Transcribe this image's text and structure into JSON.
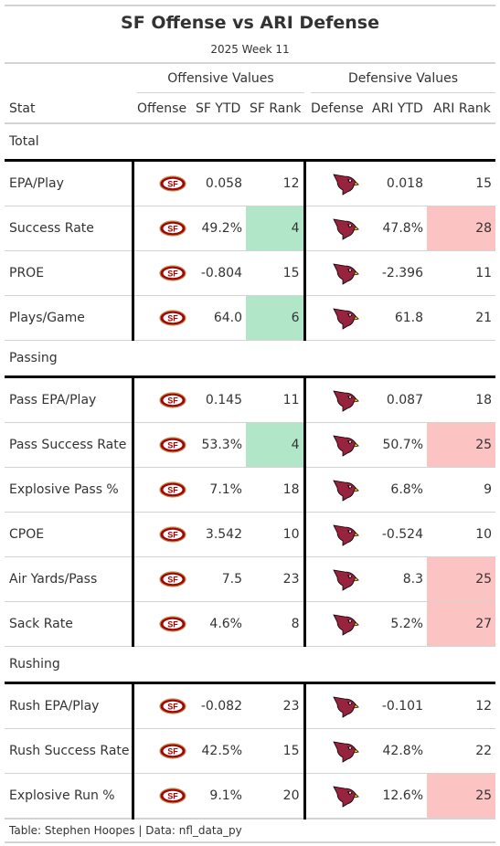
{
  "title": "SF Offense vs ARI Defense",
  "subtitle": "2025 Week 11",
  "spanners": {
    "offense": "Offensive Values",
    "defense": "Defensive Values"
  },
  "columns": {
    "stat": "Stat",
    "offense": "Offense",
    "sf_ytd": "SF YTD",
    "sf_rank": "SF Rank",
    "defense": "Defense",
    "ari_ytd": "ARI YTD",
    "ari_rank": "ARI Rank"
  },
  "colors": {
    "good_rank": "#b2e6c9",
    "bad_rank": "#fcc3c3",
    "sf_logo": "#aa0000",
    "ari_logo": "#97233f"
  },
  "groups": [
    {
      "label": "Total",
      "rows": [
        {
          "stat": "EPA/Play",
          "sf_ytd": "0.058",
          "sf_rank": "12",
          "sf_hl": "",
          "ari_ytd": "0.018",
          "ari_rank": "15",
          "ari_hl": ""
        },
        {
          "stat": "Success Rate",
          "sf_ytd": "49.2%",
          "sf_rank": "4",
          "sf_hl": "good",
          "ari_ytd": "47.8%",
          "ari_rank": "28",
          "ari_hl": "bad"
        },
        {
          "stat": "PROE",
          "sf_ytd": "-0.804",
          "sf_rank": "15",
          "sf_hl": "",
          "ari_ytd": "-2.396",
          "ari_rank": "11",
          "ari_hl": ""
        },
        {
          "stat": "Plays/Game",
          "sf_ytd": "64.0",
          "sf_rank": "6",
          "sf_hl": "good",
          "ari_ytd": "61.8",
          "ari_rank": "21",
          "ari_hl": ""
        }
      ]
    },
    {
      "label": "Passing",
      "rows": [
        {
          "stat": "Pass EPA/Play",
          "sf_ytd": "0.145",
          "sf_rank": "11",
          "sf_hl": "",
          "ari_ytd": "0.087",
          "ari_rank": "18",
          "ari_hl": ""
        },
        {
          "stat": "Pass Success Rate",
          "sf_ytd": "53.3%",
          "sf_rank": "4",
          "sf_hl": "good",
          "ari_ytd": "50.7%",
          "ari_rank": "25",
          "ari_hl": "bad"
        },
        {
          "stat": "Explosive Pass %",
          "sf_ytd": "7.1%",
          "sf_rank": "18",
          "sf_hl": "",
          "ari_ytd": "6.8%",
          "ari_rank": "9",
          "ari_hl": ""
        },
        {
          "stat": "CPOE",
          "sf_ytd": "3.542",
          "sf_rank": "10",
          "sf_hl": "",
          "ari_ytd": "-0.524",
          "ari_rank": "10",
          "ari_hl": ""
        },
        {
          "stat": "Air Yards/Pass",
          "sf_ytd": "7.5",
          "sf_rank": "23",
          "sf_hl": "",
          "ari_ytd": "8.3",
          "ari_rank": "25",
          "ari_hl": "bad"
        },
        {
          "stat": "Sack Rate",
          "sf_ytd": "4.6%",
          "sf_rank": "8",
          "sf_hl": "",
          "ari_ytd": "5.2%",
          "ari_rank": "27",
          "ari_hl": "bad"
        }
      ]
    },
    {
      "label": "Rushing",
      "rows": [
        {
          "stat": "Rush EPA/Play",
          "sf_ytd": "-0.082",
          "sf_rank": "23",
          "sf_hl": "",
          "ari_ytd": "-0.101",
          "ari_rank": "12",
          "ari_hl": ""
        },
        {
          "stat": "Rush Success Rate",
          "sf_ytd": "42.5%",
          "sf_rank": "15",
          "sf_hl": "",
          "ari_ytd": "42.8%",
          "ari_rank": "22",
          "ari_hl": ""
        },
        {
          "stat": "Explosive Run %",
          "sf_ytd": "9.1%",
          "sf_rank": "20",
          "sf_hl": "",
          "ari_ytd": "12.6%",
          "ari_rank": "25",
          "ari_hl": "bad"
        }
      ]
    }
  ],
  "footer": "Table: Stephen Hoopes | Data: nfl_data_py"
}
